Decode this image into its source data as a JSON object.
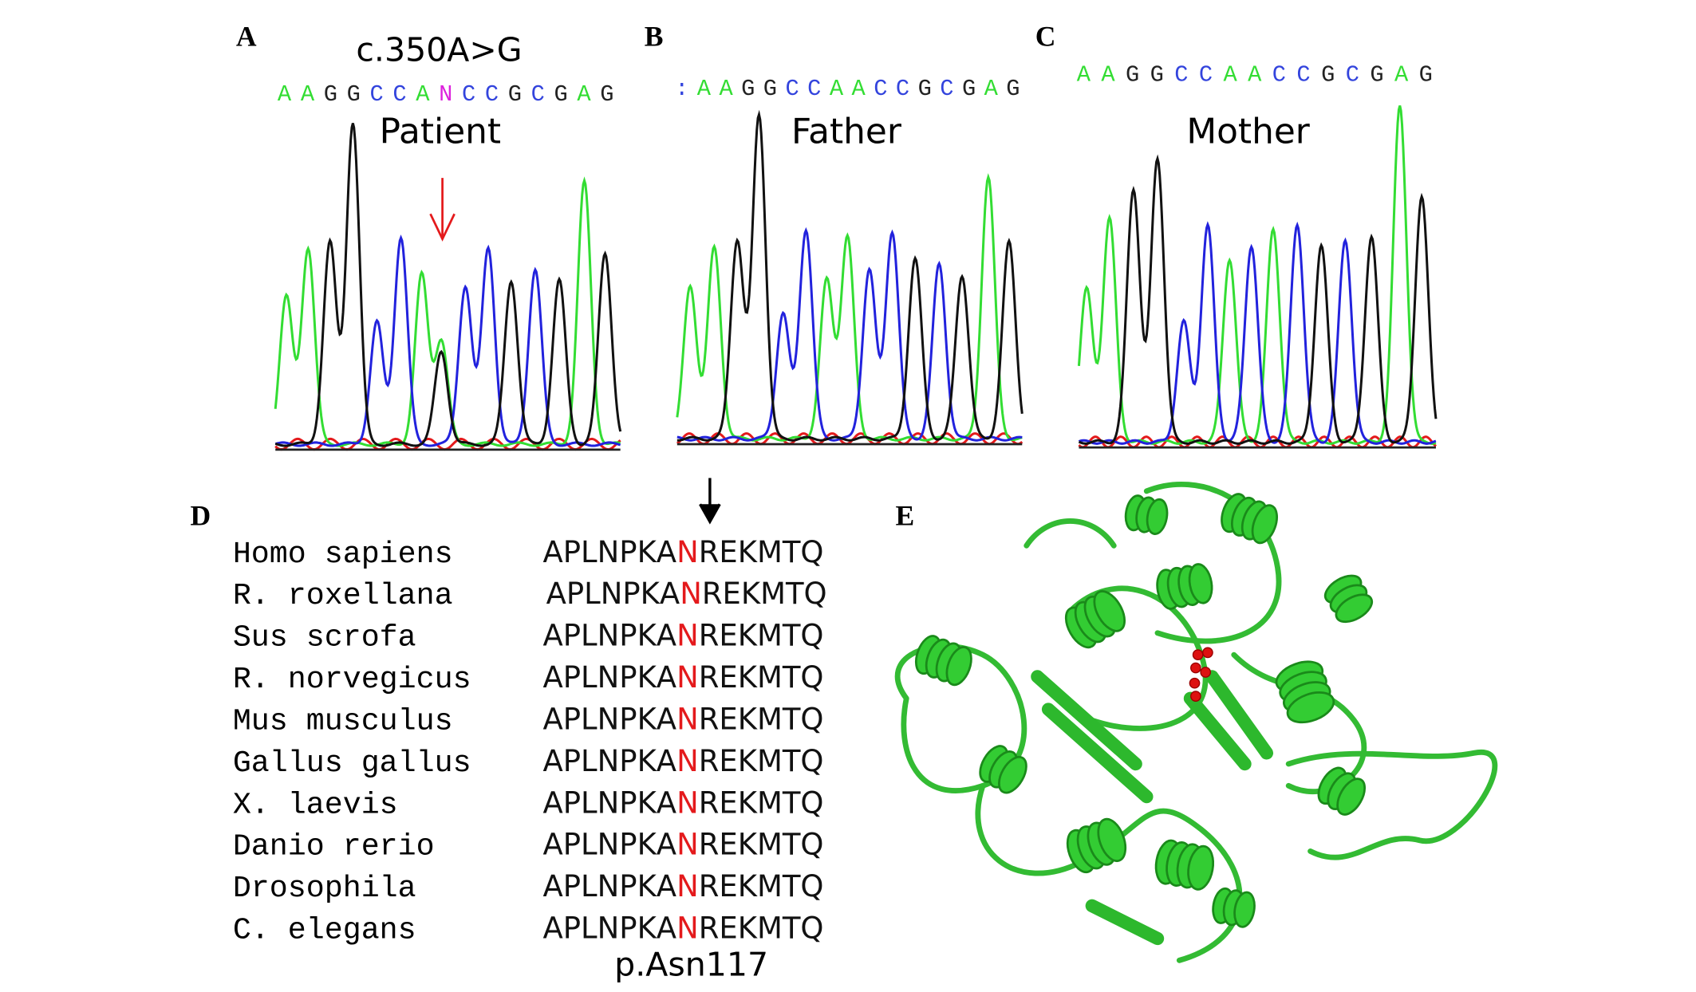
{
  "panels": [
    {
      "label": "A",
      "annotation": "c.350A>G",
      "sequence": "AAGGCCANCCGCGAG",
      "name": "Patient"
    },
    {
      "label": "B",
      "sequence": ":AAGGCCAACCGCGAG",
      "name": "Father"
    },
    {
      "label": "C",
      "sequence": "AAGGCCAACCGCGAG",
      "name": "Mother"
    }
  ],
  "alignment": {
    "label": "D",
    "rows": [
      {
        "species": "Homo sapiens",
        "sequence": "APLNPKANREKMTQ"
      },
      {
        "species": "R. roxellana",
        "sequence": "APLNPKANREKMTQ"
      },
      {
        "species": "Sus scrofa",
        "sequence": "APLNPKANREKMTQ"
      },
      {
        "species": "R. norvegicus",
        "sequence": "APLNPKANREKMTQ"
      },
      {
        "species": "Mus musculus",
        "sequence": "APLNPKANREKMTQ"
      },
      {
        "species": "Gallus gallus",
        "sequence": "APLNPKANREKMTQ"
      },
      {
        "species": "X. laevis",
        "sequence": "APLNPKANREKMTQ"
      },
      {
        "species": "Danio rerio",
        "sequence": "APLNPKANREKMTQ"
      },
      {
        "species": "Drosophila",
        "sequence": "APLNPKANREKMTQ"
      },
      {
        "species": "C. elegans",
        "sequence": "APLNPKANREKMTQ"
      }
    ],
    "position": "p.Asn117"
  },
  "structure": {
    "label": "E"
  }
}
